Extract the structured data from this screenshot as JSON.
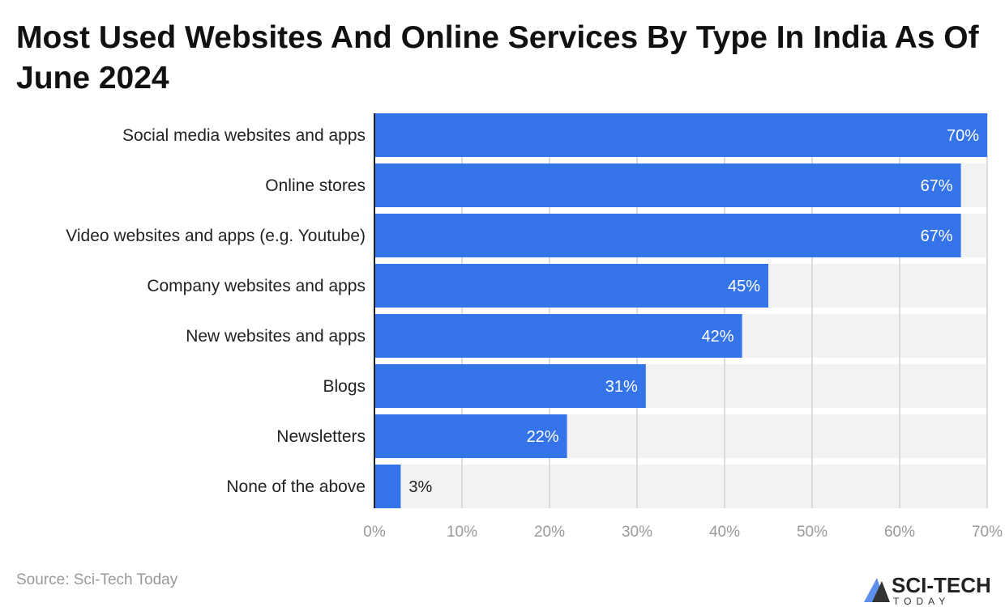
{
  "chart_data": {
    "type": "bar",
    "orientation": "horizontal",
    "title": "Most Used Websites And Online Services By Type In India As Of June 2024",
    "categories": [
      "Social media websites and apps",
      "Online stores",
      "Video websites and apps (e.g. Youtube)",
      "Company websites and apps",
      "New websites and apps",
      "Blogs",
      "Newsletters",
      "None of the above"
    ],
    "values": [
      70,
      67,
      67,
      45,
      42,
      31,
      22,
      3
    ],
    "data_labels": [
      "70%",
      "67%",
      "67%",
      "45%",
      "42%",
      "31%",
      "22%",
      "3%"
    ],
    "xticks": [
      "0%",
      "10%",
      "20%",
      "30%",
      "40%",
      "50%",
      "60%",
      "70%"
    ],
    "xlim": [
      0,
      70
    ],
    "xlabel": "",
    "ylabel": "",
    "grid": true,
    "bar_color": "#3474e8"
  },
  "source": "Source: Sci-Tech Today",
  "logo": {
    "text": "SCI-TECH",
    "subtext": "TODAY"
  }
}
